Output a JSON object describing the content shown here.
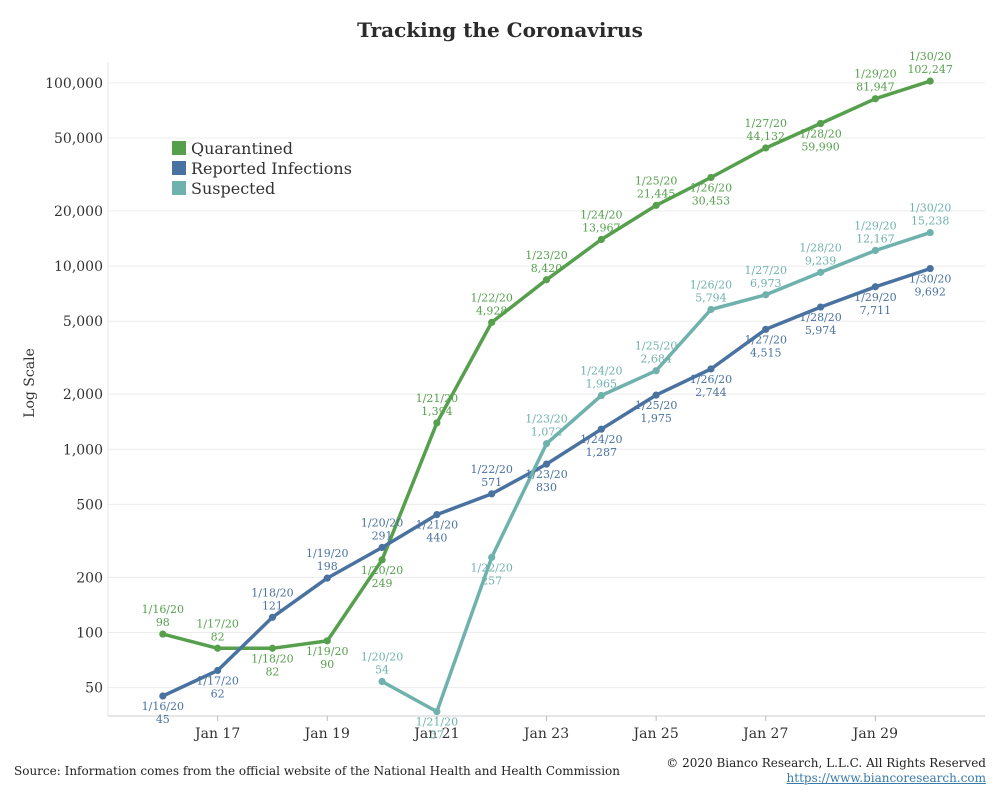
{
  "chart_data": {
    "type": "line",
    "title": "Tracking the Coronavirus",
    "ylabel": "Log Scale",
    "y_scale": "log",
    "ylim": [
      35,
      130000
    ],
    "yticks": [
      50,
      100,
      200,
      500,
      1000,
      2000,
      5000,
      10000,
      20000,
      50000,
      100000
    ],
    "ytick_labels": [
      "50",
      "100",
      "200",
      "500",
      "1,000",
      "2,000",
      "5,000",
      "10,000",
      "20,000",
      "50,000",
      "100,000"
    ],
    "xlim": [
      "2020-01-15",
      "2020-01-31"
    ],
    "xticks": [
      "2020-01-17",
      "2020-01-19",
      "2020-01-21",
      "2020-01-23",
      "2020-01-25",
      "2020-01-27",
      "2020-01-29"
    ],
    "xtick_labels": [
      "Jan 17",
      "Jan 19",
      "Jan 21",
      "Jan 23",
      "Jan 25",
      "Jan 27",
      "Jan 29"
    ],
    "grid": "horizontal",
    "legend_position": "top-left",
    "series": [
      {
        "name": "Quarantined",
        "color": "#56a04d",
        "points": [
          {
            "x": "2020-01-16",
            "y": 98,
            "label": "1/16/20",
            "value_label": "98"
          },
          {
            "x": "2020-01-17",
            "y": 82,
            "label": "1/17/20",
            "value_label": "82"
          },
          {
            "x": "2020-01-18",
            "y": 82,
            "label": "1/18/20",
            "value_label": "82"
          },
          {
            "x": "2020-01-19",
            "y": 90,
            "label": "1/19/20",
            "value_label": "90"
          },
          {
            "x": "2020-01-20",
            "y": 249,
            "label": "1/20/20",
            "value_label": "249"
          },
          {
            "x": "2020-01-21",
            "y": 1394,
            "label": "1/21/20",
            "value_label": "1,394"
          },
          {
            "x": "2020-01-22",
            "y": 4928,
            "label": "1/22/20",
            "value_label": "4,928"
          },
          {
            "x": "2020-01-23",
            "y": 8420,
            "label": "1/23/20",
            "value_label": "8,420"
          },
          {
            "x": "2020-01-24",
            "y": 13967,
            "label": "1/24/20",
            "value_label": "13,967"
          },
          {
            "x": "2020-01-25",
            "y": 21445,
            "label": "1/25/20",
            "value_label": "21,445"
          },
          {
            "x": "2020-01-26",
            "y": 30453,
            "label": "1/26/20",
            "value_label": "30,453"
          },
          {
            "x": "2020-01-27",
            "y": 44132,
            "label": "1/27/20",
            "value_label": "44,132"
          },
          {
            "x": "2020-01-28",
            "y": 59990,
            "label": "1/28/20",
            "value_label": "59,990"
          },
          {
            "x": "2020-01-29",
            "y": 81947,
            "label": "1/29/20",
            "value_label": "81,947"
          },
          {
            "x": "2020-01-30",
            "y": 102247,
            "label": "1/30/20",
            "value_label": "102,247"
          }
        ]
      },
      {
        "name": "Reported Infections",
        "color": "#4a72a0",
        "points": [
          {
            "x": "2020-01-16",
            "y": 45,
            "label": "1/16/20",
            "value_label": "45"
          },
          {
            "x": "2020-01-17",
            "y": 62,
            "label": "1/17/20",
            "value_label": "62"
          },
          {
            "x": "2020-01-18",
            "y": 121,
            "label": "1/18/20",
            "value_label": "121"
          },
          {
            "x": "2020-01-19",
            "y": 198,
            "label": "1/19/20",
            "value_label": "198"
          },
          {
            "x": "2020-01-20",
            "y": 291,
            "label": "1/20/20",
            "value_label": "291"
          },
          {
            "x": "2020-01-21",
            "y": 440,
            "label": "1/21/20",
            "value_label": "440"
          },
          {
            "x": "2020-01-22",
            "y": 571,
            "label": "1/22/20",
            "value_label": "571"
          },
          {
            "x": "2020-01-23",
            "y": 830,
            "label": "1/23/20",
            "value_label": "830"
          },
          {
            "x": "2020-01-24",
            "y": 1287,
            "label": "1/24/20",
            "value_label": "1,287"
          },
          {
            "x": "2020-01-25",
            "y": 1975,
            "label": "1/25/20",
            "value_label": "1,975"
          },
          {
            "x": "2020-01-26",
            "y": 2744,
            "label": "1/26/20",
            "value_label": "2,744"
          },
          {
            "x": "2020-01-27",
            "y": 4515,
            "label": "1/27/20",
            "value_label": "4,515"
          },
          {
            "x": "2020-01-28",
            "y": 5974,
            "label": "1/28/20",
            "value_label": "5,974"
          },
          {
            "x": "2020-01-29",
            "y": 7711,
            "label": "1/29/20",
            "value_label": "7,711"
          },
          {
            "x": "2020-01-30",
            "y": 9692,
            "label": "1/30/20",
            "value_label": "9,692"
          }
        ]
      },
      {
        "name": "Suspected",
        "color": "#6fb2ad",
        "points": [
          {
            "x": "2020-01-20",
            "y": 54,
            "label": "1/20/20",
            "value_label": "54"
          },
          {
            "x": "2020-01-21",
            "y": 37,
            "label": "1/21/20",
            "value_label": "37"
          },
          {
            "x": "2020-01-22",
            "y": 257,
            "label": "1/22/20",
            "value_label": "257"
          },
          {
            "x": "2020-01-23",
            "y": 1072,
            "label": "1/23/20",
            "value_label": "1,072"
          },
          {
            "x": "2020-01-24",
            "y": 1965,
            "label": "1/24/20",
            "value_label": "1,965"
          },
          {
            "x": "2020-01-25",
            "y": 2684,
            "label": "1/25/20",
            "value_label": "2,684"
          },
          {
            "x": "2020-01-26",
            "y": 5794,
            "label": "1/26/20",
            "value_label": "5,794"
          },
          {
            "x": "2020-01-27",
            "y": 6973,
            "label": "1/27/20",
            "value_label": "6,973"
          },
          {
            "x": "2020-01-28",
            "y": 9239,
            "label": "1/28/20",
            "value_label": "9,239"
          },
          {
            "x": "2020-01-29",
            "y": 12167,
            "label": "1/29/20",
            "value_label": "12,167"
          },
          {
            "x": "2020-01-30",
            "y": 15238,
            "label": "1/30/20",
            "value_label": "15,238"
          }
        ]
      }
    ]
  },
  "footer": {
    "source": "Source: Information comes from the official website of the National Health and Health Commission",
    "copyright": "© 2020 Bianco Research, L.L.C. All Rights Reserved",
    "website": "https://www.biancoresearch.com"
  }
}
